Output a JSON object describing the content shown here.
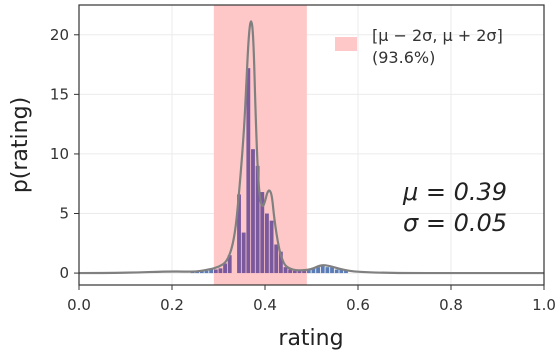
{
  "chart_data": {
    "type": "bar",
    "title": "",
    "xlabel": "rating",
    "ylabel": "p(rating)",
    "xlim": [
      0.0,
      1.0
    ],
    "ylim": [
      -1.0,
      22.5
    ],
    "xticks": [
      0.0,
      0.2,
      0.4,
      0.6,
      0.8,
      1.0
    ],
    "xtick_labels": [
      "0.0",
      "0.2",
      "0.4",
      "0.6",
      "0.8",
      "1.0"
    ],
    "yticks": [
      0,
      5,
      10,
      15,
      20
    ],
    "ytick_labels": [
      "0",
      "5",
      "10",
      "15",
      "20"
    ],
    "grid": true,
    "colors": {
      "band": "#ffc8c8",
      "bar_in_band": "#7a5a9c",
      "bar_out_band": "#5a7db8",
      "kde": "#808080"
    },
    "band": {
      "range": [
        0.29,
        0.49
      ],
      "legend_line1": "[μ − 2σ, μ + 2σ]",
      "legend_line2": "(93.6%)"
    },
    "legend_position": "top-right",
    "stats": {
      "mu_text": "μ = 0.39",
      "sigma_text": "σ = 0.05"
    },
    "histogram": {
      "bin_width": 0.01,
      "bins": [
        {
          "x": 0.24,
          "value": 0.1
        },
        {
          "x": 0.25,
          "value": 0.15
        },
        {
          "x": 0.26,
          "value": 0.2
        },
        {
          "x": 0.27,
          "value": 0.2
        },
        {
          "x": 0.28,
          "value": 0.3
        },
        {
          "x": 0.29,
          "value": 0.3
        },
        {
          "x": 0.3,
          "value": 0.4
        },
        {
          "x": 0.31,
          "value": 0.8
        },
        {
          "x": 0.32,
          "value": 1.5
        },
        {
          "x": 0.34,
          "value": 6.6
        },
        {
          "x": 0.35,
          "value": 3.4
        },
        {
          "x": 0.36,
          "value": 17.2
        },
        {
          "x": 0.37,
          "value": 10.4
        },
        {
          "x": 0.38,
          "value": 9.0
        },
        {
          "x": 0.39,
          "value": 6.8
        },
        {
          "x": 0.4,
          "value": 5.0
        },
        {
          "x": 0.41,
          "value": 4.4
        },
        {
          "x": 0.42,
          "value": 2.4
        },
        {
          "x": 0.43,
          "value": 1.8
        },
        {
          "x": 0.44,
          "value": 0.5
        },
        {
          "x": 0.45,
          "value": 0.3
        },
        {
          "x": 0.46,
          "value": 0.2
        },
        {
          "x": 0.47,
          "value": 0.2
        },
        {
          "x": 0.48,
          "value": 0.2
        },
        {
          "x": 0.49,
          "value": 0.3
        },
        {
          "x": 0.5,
          "value": 0.4
        },
        {
          "x": 0.51,
          "value": 0.5
        },
        {
          "x": 0.52,
          "value": 0.6
        },
        {
          "x": 0.53,
          "value": 0.5
        },
        {
          "x": 0.54,
          "value": 0.5
        },
        {
          "x": 0.55,
          "value": 0.3
        },
        {
          "x": 0.56,
          "value": 0.3
        },
        {
          "x": 0.57,
          "value": 0.3
        }
      ]
    },
    "kde": {
      "x": [
        0.0,
        0.1,
        0.2,
        0.25,
        0.28,
        0.3,
        0.32,
        0.335,
        0.345,
        0.355,
        0.36,
        0.365,
        0.37,
        0.375,
        0.38,
        0.385,
        0.39,
        0.395,
        0.4,
        0.405,
        0.41,
        0.415,
        0.42,
        0.43,
        0.44,
        0.45,
        0.47,
        0.5,
        0.52,
        0.54,
        0.56,
        0.58,
        0.6,
        0.65,
        0.7,
        0.8,
        0.9,
        1.0
      ],
      "y": [
        0.0,
        0.02,
        0.15,
        0.1,
        0.3,
        0.5,
        1.0,
        3.0,
        7.0,
        12.0,
        16.0,
        20.0,
        21.5,
        20.0,
        13.0,
        8.0,
        6.0,
        5.5,
        6.0,
        6.8,
        7.0,
        6.5,
        4.5,
        2.0,
        0.8,
        0.4,
        0.2,
        0.3,
        0.7,
        0.6,
        0.35,
        0.2,
        0.1,
        0.03,
        0.0,
        0.0,
        0.0,
        0.0
      ]
    }
  }
}
